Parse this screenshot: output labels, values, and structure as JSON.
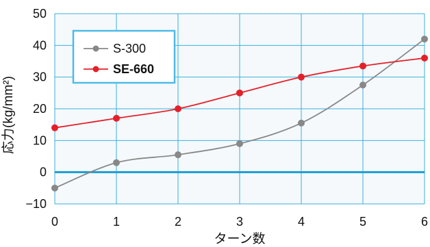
{
  "chart_data": {
    "type": "line",
    "xlabel": "ターン数",
    "ylabel": "応力(kg/mm²)",
    "x": [
      0,
      1,
      2,
      3,
      4,
      5,
      6
    ],
    "xlim": [
      0,
      6
    ],
    "ylim": [
      -10,
      50
    ],
    "xticks": [
      "0",
      "1",
      "2",
      "3",
      "4",
      "5",
      "6"
    ],
    "yticks": [
      "50",
      "40",
      "30",
      "20",
      "10",
      "0",
      "−10"
    ],
    "grid": true,
    "legend_position": "top-left",
    "series": [
      {
        "name": "S-300",
        "values": [
          -5,
          3,
          5.5,
          9,
          15.5,
          27.5,
          42
        ],
        "color": "#888888",
        "bold": false
      },
      {
        "name": "SE-660",
        "values": [
          14,
          17,
          20,
          25,
          30,
          33.5,
          36
        ],
        "color": "#e4202a",
        "bold": true
      }
    ],
    "colors": {
      "plot_background": "#f5f9fc",
      "grid": "#3ab0dd",
      "zero_line": "#1a9fd4",
      "legend_border": "#4dbbe6"
    }
  }
}
